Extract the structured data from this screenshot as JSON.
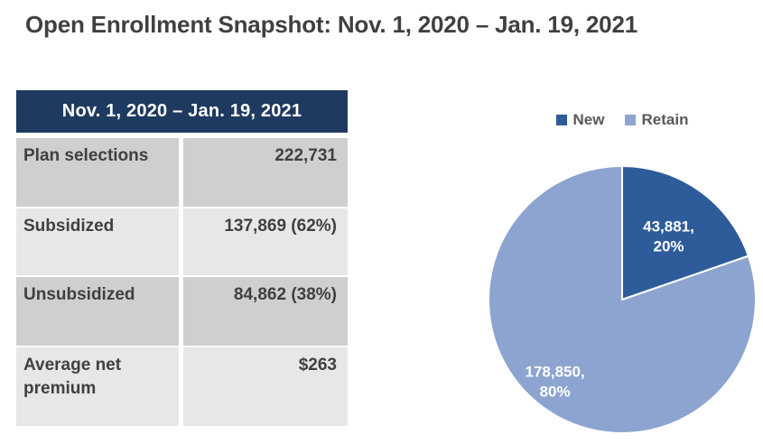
{
  "title": "Open Enrollment Snapshot: Nov. 1, 2020 – Jan. 19, 2021",
  "table": {
    "header": "Nov. 1, 2020 – Jan. 19, 2021",
    "rows": [
      {
        "label": "Plan selections",
        "value": "222,731"
      },
      {
        "label": "Subsidized",
        "value": "137,869 (62%)"
      },
      {
        "label": "Unsubsidized",
        "value": "84,862 (38%)"
      },
      {
        "label": "Average net premium",
        "value": "$263"
      }
    ]
  },
  "chart_data": {
    "type": "pie",
    "categories": [
      "New",
      "Retain"
    ],
    "values": [
      43881,
      178850
    ],
    "percentages": [
      20,
      80
    ],
    "slice_labels": [
      [
        "43,881,",
        "20%"
      ],
      [
        "178,850,",
        "80%"
      ]
    ],
    "colors": [
      "#2e5c9a",
      "#8ca4cf"
    ],
    "legend_position": "top",
    "start_angle_deg": 0,
    "direction": "clockwise",
    "slice_border_color": "#ffffff"
  },
  "colors": {
    "table_header_bg": "#1f3a60",
    "table_header_text": "#ffffff",
    "row_dark": "#cfcfd1",
    "row_light": "#e7e7e9",
    "text_dark": "#404040",
    "legend_text": "#595959"
  }
}
